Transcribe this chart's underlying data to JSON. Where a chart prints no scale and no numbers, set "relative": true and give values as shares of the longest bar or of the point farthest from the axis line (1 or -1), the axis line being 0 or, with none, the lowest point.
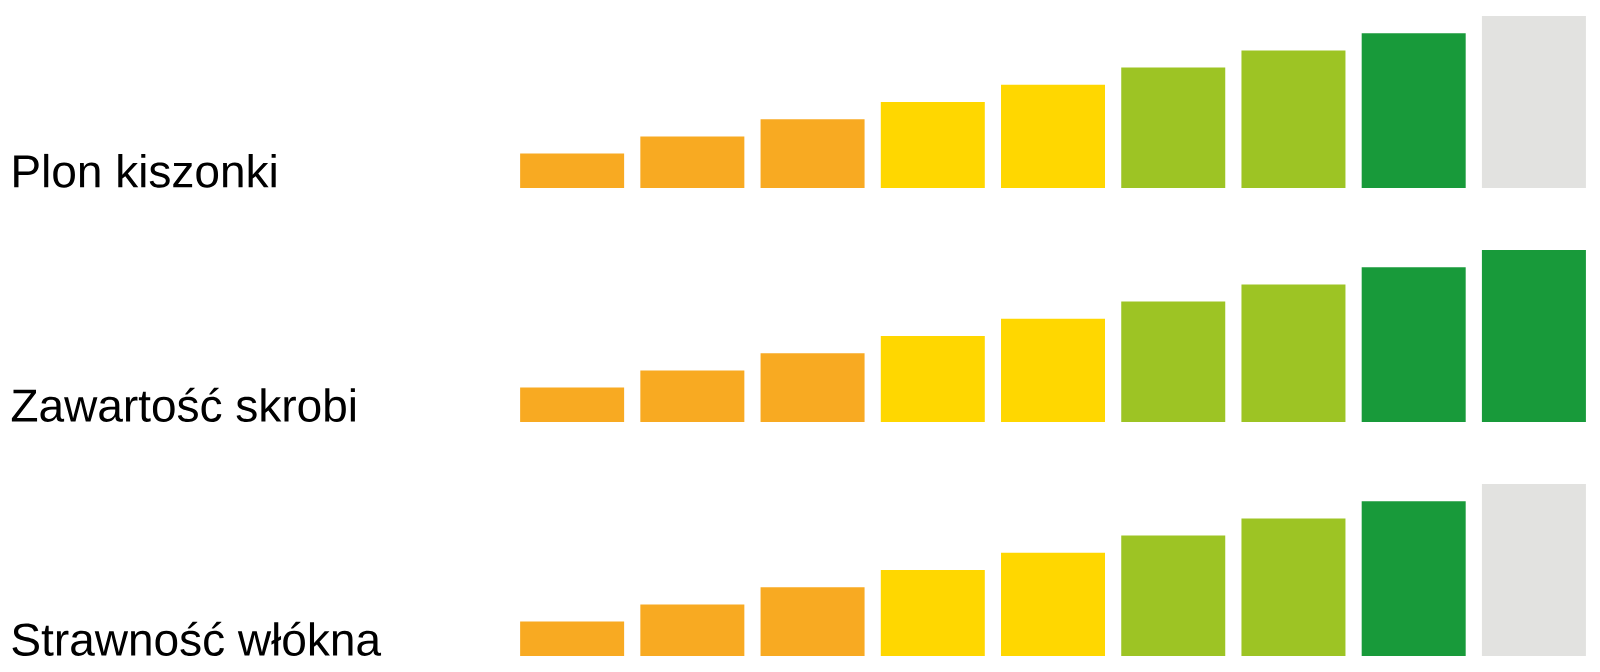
{
  "chart_data": [
    {
      "type": "bar",
      "title": "Plon kiszonki",
      "relative": true,
      "categories": [
        null,
        null,
        null,
        null,
        null,
        null,
        null,
        null,
        null
      ],
      "values": [
        0.2,
        0.3,
        0.4,
        0.5,
        0.6,
        0.7,
        0.8,
        0.9,
        1.0
      ],
      "colors": [
        "#f8aa22",
        "#f8aa22",
        "#f8aa22",
        "#ffd700",
        "#ffd700",
        "#9dc424",
        "#9dc424",
        "#189a3a",
        "#e2e2e0"
      ]
    },
    {
      "type": "bar",
      "title": "Zawartość skrobi",
      "relative": true,
      "categories": [
        null,
        null,
        null,
        null,
        null,
        null,
        null,
        null,
        null
      ],
      "values": [
        0.2,
        0.3,
        0.4,
        0.5,
        0.6,
        0.7,
        0.8,
        0.9,
        1.0
      ],
      "colors": [
        "#f8aa22",
        "#f8aa22",
        "#f8aa22",
        "#ffd700",
        "#ffd700",
        "#9dc424",
        "#9dc424",
        "#189a3a",
        "#189a3a"
      ]
    },
    {
      "type": "bar",
      "title": "Strawność włókna",
      "relative": true,
      "categories": [
        null,
        null,
        null,
        null,
        null,
        null,
        null,
        null,
        null
      ],
      "values": [
        0.2,
        0.3,
        0.4,
        0.5,
        0.6,
        0.7,
        0.8,
        0.9,
        1.0
      ],
      "colors": [
        "#f8aa22",
        "#f8aa22",
        "#f8aa22",
        "#ffd700",
        "#ffd700",
        "#9dc424",
        "#9dc424",
        "#189a3a",
        "#e2e2e0"
      ]
    }
  ]
}
